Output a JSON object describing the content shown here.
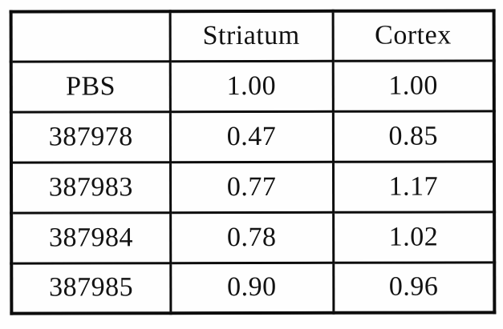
{
  "table": {
    "columns": [
      "",
      "Striatum",
      "Cortex"
    ],
    "rows": [
      [
        "PBS",
        "1.00",
        "1.00"
      ],
      [
        "387978",
        "0.47",
        "0.85"
      ],
      [
        "387983",
        "0.77",
        "1.17"
      ],
      [
        "387984",
        "0.78",
        "1.02"
      ],
      [
        "387985",
        "0.90",
        "0.96"
      ]
    ],
    "border_color": "#0c0c0c",
    "text_color": "#121212",
    "background_color": "#fefefe"
  }
}
